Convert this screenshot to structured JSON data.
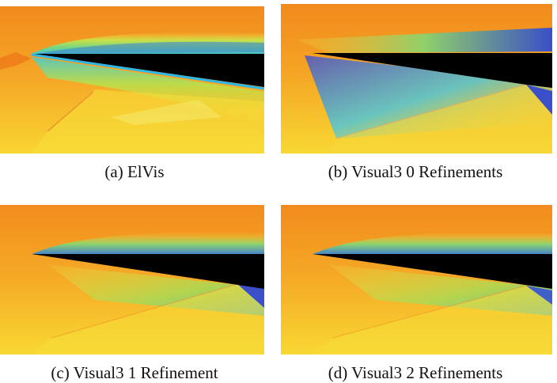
{
  "figures": [
    {
      "caption": "(a)  ElVis"
    },
    {
      "caption": "(b)  Visual3 0 Refinements"
    },
    {
      "caption": "(c)  Visual3 1 Refinement"
    },
    {
      "caption": "(d)  Visual3 2 Refinements"
    }
  ],
  "palette": {
    "orange": "#f29a1e",
    "deep_orange": "#ee7c16",
    "yellow": "#f8e233",
    "green": "#7ed56a",
    "cyan": "#3fc1e0",
    "blue": "#3a55c8",
    "black": "#000000"
  }
}
